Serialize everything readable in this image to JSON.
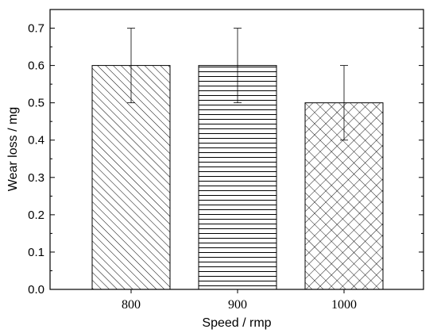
{
  "chart_data": {
    "type": "bar",
    "title": "",
    "xlabel": "Speed / rmp",
    "ylabel": "Wear loss / mg",
    "categories": [
      "800",
      "900",
      "1000"
    ],
    "values": [
      0.6,
      0.6,
      0.5
    ],
    "error": [
      0.1,
      0.1,
      0.1
    ],
    "ylim": [
      0,
      0.75
    ],
    "yticks": [
      "0.0",
      "0.1",
      "0.2",
      "0.3",
      "0.4",
      "0.5",
      "0.6",
      "0.7"
    ],
    "patterns": [
      "diagonal-hatch",
      "horizontal-lines",
      "crosshatch"
    ],
    "grid": false,
    "legend": "none"
  }
}
